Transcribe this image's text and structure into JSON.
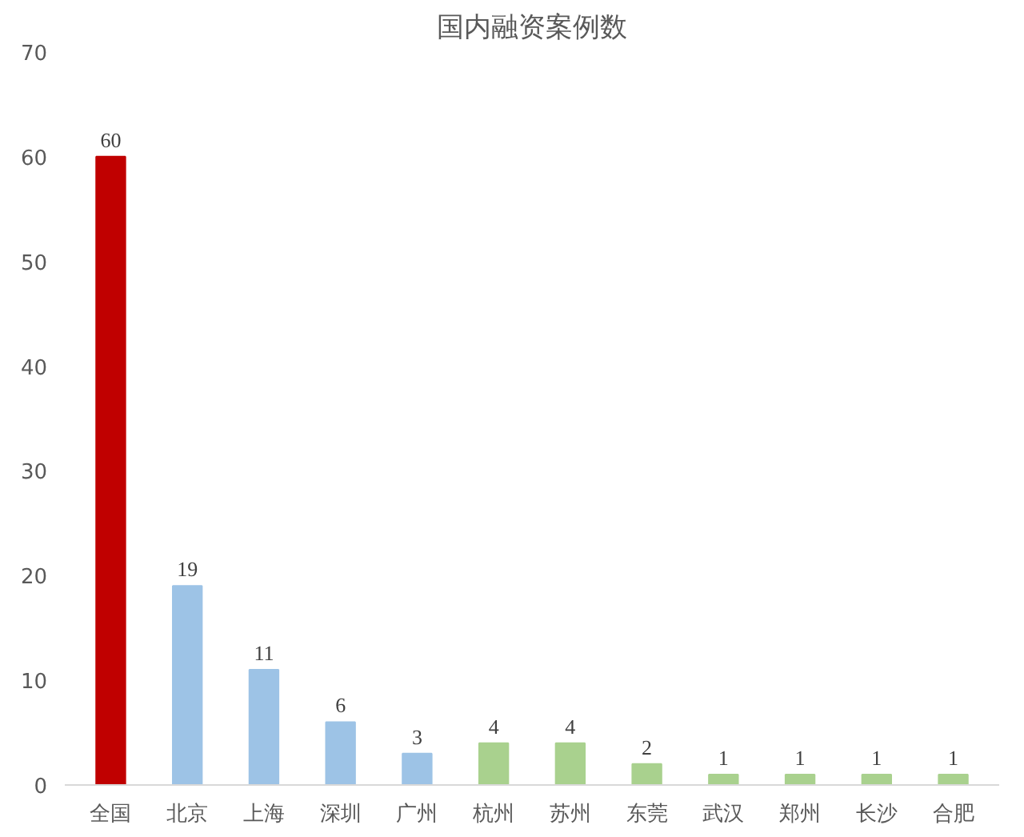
{
  "chart_data": {
    "type": "bar",
    "title": "国内融资案例数",
    "categories": [
      "全国",
      "北京",
      "上海",
      "深圳",
      "广州",
      "杭州",
      "苏州",
      "东莞",
      "武汉",
      "郑州",
      "长沙",
      "合肥"
    ],
    "values": [
      60,
      19,
      11,
      6,
      3,
      4,
      4,
      2,
      1,
      1,
      1,
      1
    ],
    "colors": [
      "#c00000",
      "#9dc3e6",
      "#9dc3e6",
      "#9dc3e6",
      "#9dc3e6",
      "#a9d18e",
      "#a9d18e",
      "#a9d18e",
      "#a9d18e",
      "#a9d18e",
      "#a9d18e",
      "#a9d18e"
    ],
    "ylim": [
      0,
      70
    ],
    "yticks": [
      0,
      10,
      20,
      30,
      40,
      50,
      60,
      70
    ],
    "grid": false,
    "data_labels": true
  }
}
